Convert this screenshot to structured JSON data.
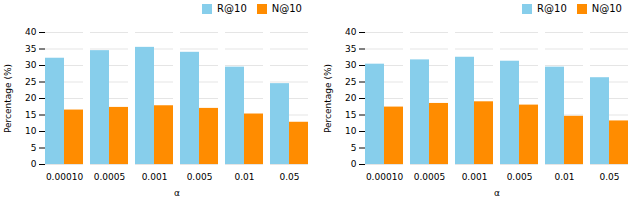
{
  "chart_data": [
    {
      "type": "bar",
      "categories": [
        "0.00010",
        "0.0005",
        "0.001",
        "0.005",
        "0.01",
        "0.05"
      ],
      "series": [
        {
          "name": "R@10",
          "color": "#87CEEB",
          "values": [
            32.2,
            34.5,
            35.5,
            34.0,
            29.5,
            24.5
          ]
        },
        {
          "name": "N@10",
          "color": "#FF8C00",
          "values": [
            16.5,
            17.3,
            17.8,
            17.0,
            15.3,
            12.8
          ]
        }
      ],
      "xlabel": "α",
      "ylabel": "Percentage (%)",
      "ylim": [
        0,
        40
      ],
      "yticks": [
        0,
        5,
        10,
        15,
        20,
        25,
        30,
        35,
        40
      ],
      "grid": true,
      "legend": "upper right"
    },
    {
      "type": "bar",
      "categories": [
        "0.00010",
        "0.0005",
        "0.001",
        "0.005",
        "0.01",
        "0.05"
      ],
      "series": [
        {
          "name": "R@10",
          "color": "#87CEEB",
          "values": [
            30.4,
            31.7,
            32.5,
            31.3,
            29.5,
            26.3
          ]
        },
        {
          "name": "N@10",
          "color": "#FF8C00",
          "values": [
            17.4,
            18.5,
            19.0,
            18.0,
            14.6,
            13.2
          ]
        }
      ],
      "xlabel": "α",
      "ylabel": "Percentage (%)",
      "ylim": [
        0,
        40
      ],
      "yticks": [
        0,
        5,
        10,
        15,
        20,
        25,
        30,
        35,
        40
      ],
      "grid": true,
      "legend": "upper right"
    }
  ]
}
